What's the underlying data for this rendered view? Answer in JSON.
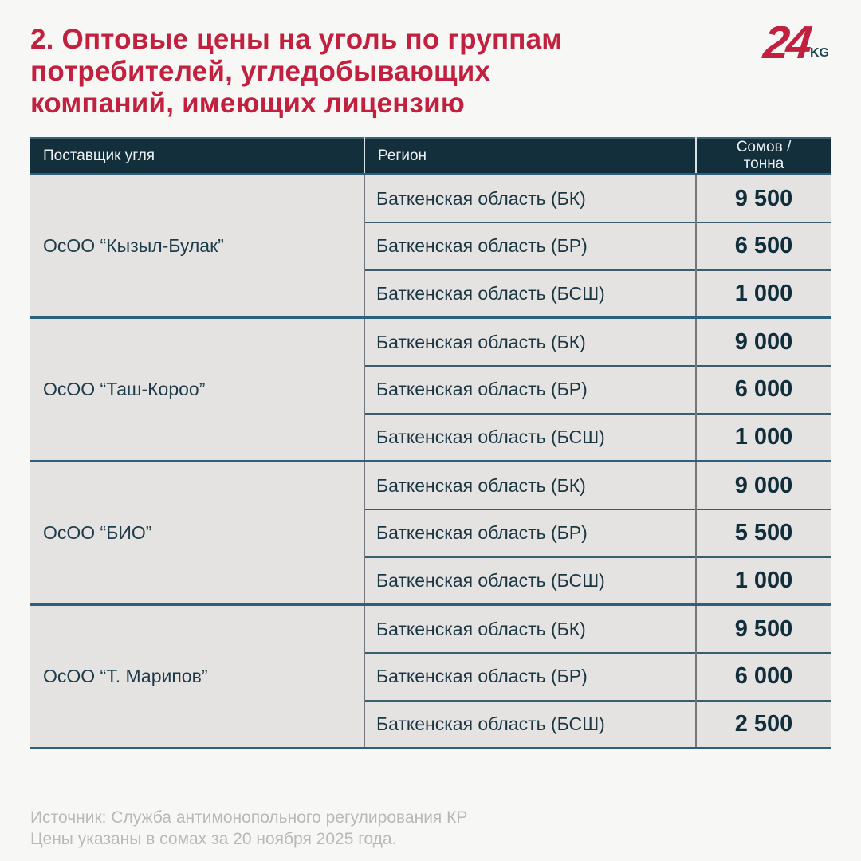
{
  "header": {
    "title_lines": [
      "2. Оптовые цены на уголь по группам",
      "потребителей, угледобывающих",
      "компаний, имеющих лицензию"
    ],
    "logo": {
      "number": "24",
      "suffix": "KG"
    }
  },
  "table": {
    "columns": [
      "Поставщик угля",
      "Регион",
      "Сомов / тонна"
    ],
    "groups": [
      {
        "supplier": "ОсОО “Кызыл-Булак”",
        "rows": [
          {
            "region": "Баткенская область (БК)",
            "price": "9 500"
          },
          {
            "region": "Баткенская область (БР)",
            "price": "6 500"
          },
          {
            "region": "Баткенская область (БСШ)",
            "price": "1 000"
          }
        ]
      },
      {
        "supplier": "ОсОО “Таш-Короо”",
        "rows": [
          {
            "region": "Баткенская область (БК)",
            "price": "9 000"
          },
          {
            "region": "Баткенская область (БР)",
            "price": "6 000"
          },
          {
            "region": "Баткенская область (БСШ)",
            "price": "1 000"
          }
        ]
      },
      {
        "supplier": "ОсОО “БИО”",
        "rows": [
          {
            "region": "Баткенская область (БК)",
            "price": "9 000"
          },
          {
            "region": "Баткенская область (БР)",
            "price": "5 500"
          },
          {
            "region": "Баткенская область (БСШ)",
            "price": "1 000"
          }
        ]
      },
      {
        "supplier": "ОсОО “Т. Марипов”",
        "rows": [
          {
            "region": "Баткенская область (БК)",
            "price": "9 500"
          },
          {
            "region": "Баткенская область (БР)",
            "price": "6 000"
          },
          {
            "region": "Баткенская область (БСШ)",
            "price": "2 500"
          }
        ]
      }
    ]
  },
  "footer": {
    "line1": "Источник: Служба антимонопольного регулирования КР",
    "line2": "Цены указаны в сомах за 20 ноября 2025 года."
  },
  "colors": {
    "accent_red": "#C2203F",
    "header_navy": "#132F3B",
    "separator_blue": "#2B617E",
    "row_bg": "#E4E3E2",
    "page_bg": "#F7F7F5",
    "price_text": "#112E3B",
    "footer_gray": "#B9B9B8",
    "logo_kg_teal": "#1E4856"
  },
  "chart_data": {
    "type": "table",
    "title": "2. Оптовые цены на уголь по группам потребителей, угледобывающих компаний, имеющих лицензию",
    "columns": [
      "Поставщик угля",
      "Регион",
      "Сомов / тонна"
    ],
    "rows": [
      [
        "ОсОО “Кызыл-Булак”",
        "Баткенская область (БК)",
        9500
      ],
      [
        "ОсОО “Кызыл-Булак”",
        "Баткенская область (БР)",
        6500
      ],
      [
        "ОсОО “Кызыл-Булак”",
        "Баткенская область (БСШ)",
        1000
      ],
      [
        "ОсОО “Таш-Короо”",
        "Баткенская область (БК)",
        9000
      ],
      [
        "ОсОО “Таш-Короо”",
        "Баткенская область (БР)",
        6000
      ],
      [
        "ОсОО “Таш-Короо”",
        "Баткенская область (БСШ)",
        1000
      ],
      [
        "ОсОО “БИО”",
        "Баткенская область (БК)",
        9000
      ],
      [
        "ОсОО “БИО”",
        "Баткенская область (БР)",
        5500
      ],
      [
        "ОсОО “БИО”",
        "Баткенская область (БСШ)",
        1000
      ],
      [
        "ОсОО “Т. Марипов”",
        "Баткенская область (БК)",
        9500
      ],
      [
        "ОсОО “Т. Марипов”",
        "Баткенская область (БР)",
        6000
      ],
      [
        "ОсОО “Т. Марипов”",
        "Баткенская область (БСШ)",
        2500
      ]
    ],
    "annotations": [
      "Источник: Служба антимонопольного регулирования КР",
      "Цены указаны в сомах за 20 ноября 2025 года."
    ]
  }
}
